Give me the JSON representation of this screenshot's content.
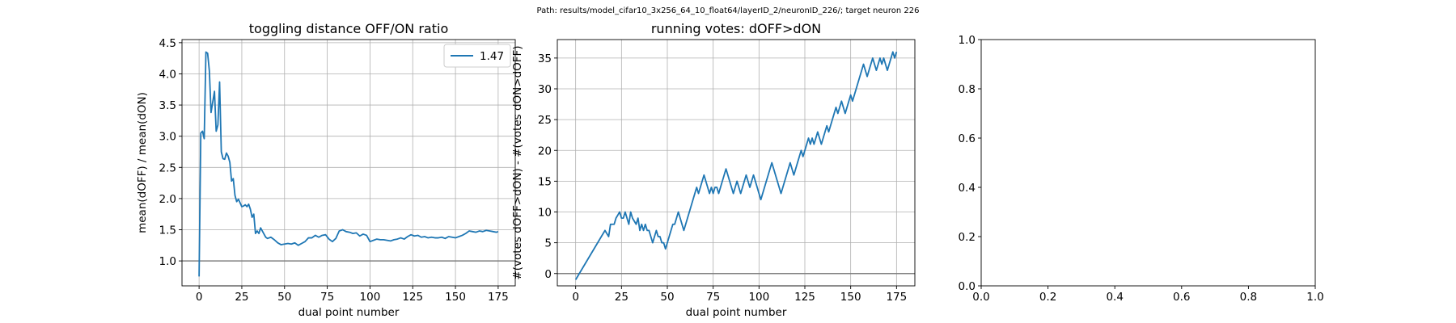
{
  "figure": {
    "suptitle": "Path: results/model_cifar10_3x256_64_10_float64/layerID_2/neuronID_226/; target neuron 226"
  },
  "chart_data": [
    {
      "type": "line",
      "title": "toggling distance OFF/ON ratio",
      "xlabel": "dual point number",
      "ylabel": "mean(dOFF) / mean(dON)",
      "xlim": [
        -10,
        185
      ],
      "ylim": [
        0.6,
        4.55
      ],
      "xticks": [
        0,
        25,
        50,
        75,
        100,
        125,
        150,
        175
      ],
      "yticks": [
        1.0,
        1.5,
        2.0,
        2.5,
        3.0,
        3.5,
        4.0,
        4.5
      ],
      "ytick_labels": [
        "1.0",
        "1.5",
        "2.0",
        "2.5",
        "3.0",
        "3.5",
        "4.0",
        "4.5"
      ],
      "grid": true,
      "legend": "top-right",
      "hline": 1.0,
      "colors": {
        "line": "#1f77b4",
        "hline": "#808080",
        "grid": "#b0b0b0"
      },
      "series": [
        {
          "name": "1.47",
          "x": [
            0,
            1,
            2,
            3,
            4,
            5,
            6,
            7,
            8,
            9,
            10,
            11,
            12,
            13,
            14,
            15,
            16,
            17,
            18,
            19,
            20,
            21,
            22,
            23,
            24,
            25,
            26,
            27,
            28,
            29,
            30,
            31,
            32,
            33,
            34,
            35,
            36,
            37,
            38,
            39,
            40,
            42,
            44,
            46,
            48,
            50,
            52,
            54,
            56,
            58,
            60,
            62,
            64,
            66,
            68,
            70,
            72,
            74,
            76,
            78,
            80,
            82,
            84,
            86,
            88,
            90,
            92,
            94,
            96,
            98,
            100,
            102,
            104,
            106,
            108,
            110,
            112,
            114,
            116,
            118,
            120,
            122,
            124,
            126,
            128,
            130,
            132,
            134,
            136,
            138,
            140,
            142,
            144,
            146,
            148,
            150,
            152,
            154,
            156,
            158,
            160,
            162,
            164,
            166,
            168,
            170,
            172,
            174,
            175
          ],
          "y": [
            0.75,
            3.05,
            3.08,
            2.96,
            4.35,
            4.33,
            4.05,
            3.38,
            3.55,
            3.72,
            3.08,
            3.18,
            3.87,
            2.75,
            2.64,
            2.63,
            2.73,
            2.68,
            2.58,
            2.28,
            2.32,
            2.05,
            1.95,
            1.99,
            1.93,
            1.87,
            1.88,
            1.9,
            1.87,
            1.91,
            1.83,
            1.7,
            1.75,
            1.44,
            1.48,
            1.44,
            1.53,
            1.48,
            1.43,
            1.38,
            1.36,
            1.38,
            1.34,
            1.29,
            1.26,
            1.27,
            1.28,
            1.27,
            1.29,
            1.25,
            1.28,
            1.31,
            1.37,
            1.37,
            1.41,
            1.38,
            1.41,
            1.42,
            1.35,
            1.31,
            1.36,
            1.48,
            1.5,
            1.47,
            1.46,
            1.44,
            1.45,
            1.4,
            1.43,
            1.41,
            1.31,
            1.33,
            1.35,
            1.34,
            1.34,
            1.33,
            1.32,
            1.34,
            1.35,
            1.37,
            1.35,
            1.39,
            1.42,
            1.4,
            1.41,
            1.38,
            1.39,
            1.37,
            1.38,
            1.37,
            1.37,
            1.38,
            1.36,
            1.39,
            1.38,
            1.37,
            1.39,
            1.41,
            1.44,
            1.48,
            1.47,
            1.46,
            1.48,
            1.47,
            1.49,
            1.48,
            1.47,
            1.46,
            1.47
          ]
        }
      ]
    },
    {
      "type": "line",
      "title": "running votes: dOFF>dON",
      "xlabel": "dual point number",
      "ylabel": "#(votes dOFF>dON) - #(votes dON>dOFF)",
      "xlim": [
        -10,
        185
      ],
      "ylim": [
        -2,
        38
      ],
      "xticks": [
        0,
        25,
        50,
        75,
        100,
        125,
        150,
        175
      ],
      "yticks": [
        0,
        5,
        10,
        15,
        20,
        25,
        30,
        35
      ],
      "ytick_labels": [
        "0",
        "5",
        "10",
        "15",
        "20",
        "25",
        "30",
        "35"
      ],
      "grid": true,
      "hline": 0,
      "colors": {
        "line": "#1f77b4",
        "hline": "#808080",
        "grid": "#b0b0b0"
      },
      "series": [
        {
          "x": [
            0,
            16,
            18,
            19,
            21,
            22,
            24,
            25,
            26,
            27,
            29,
            30,
            31,
            33,
            34,
            35,
            36,
            37,
            38,
            39,
            40,
            41,
            42,
            43,
            44,
            45,
            46,
            47,
            48,
            49,
            50,
            51,
            52,
            53,
            54,
            55,
            56,
            57,
            58,
            59,
            60,
            61,
            62,
            63,
            64,
            65,
            66,
            67,
            68,
            69,
            70,
            71,
            72,
            73,
            74,
            75,
            76,
            77,
            78,
            79,
            80,
            81,
            82,
            83,
            84,
            85,
            86,
            87,
            88,
            89,
            90,
            91,
            92,
            93,
            94,
            95,
            96,
            97,
            98,
            99,
            100,
            101,
            102,
            103,
            104,
            105,
            106,
            107,
            108,
            109,
            110,
            111,
            112,
            113,
            114,
            115,
            116,
            117,
            118,
            119,
            120,
            121,
            122,
            123,
            124,
            125,
            126,
            127,
            128,
            129,
            130,
            131,
            132,
            133,
            134,
            135,
            136,
            137,
            138,
            139,
            140,
            141,
            142,
            143,
            144,
            145,
            146,
            147,
            148,
            149,
            150,
            151,
            152,
            153,
            154,
            155,
            156,
            157,
            158,
            159,
            160,
            161,
            162,
            163,
            164,
            165,
            166,
            167,
            168,
            169,
            170,
            171,
            172,
            173,
            174,
            175
          ],
          "y": [
            -1,
            7,
            6,
            8,
            8,
            9,
            10,
            9,
            9,
            10,
            8,
            10,
            9,
            8,
            9,
            7,
            8,
            7,
            8,
            7,
            7,
            6,
            5,
            6,
            7,
            6,
            6,
            5,
            5,
            4,
            5,
            6,
            7,
            8,
            8,
            9,
            10,
            9,
            8,
            7,
            8,
            9,
            10,
            11,
            12,
            13,
            14,
            13,
            14,
            15,
            16,
            15,
            14,
            13,
            14,
            13,
            14,
            14,
            13,
            14,
            15,
            16,
            17,
            16,
            15,
            14,
            13,
            14,
            15,
            14,
            13,
            14,
            15,
            16,
            15,
            14,
            15,
            16,
            15,
            14,
            13,
            12,
            13,
            14,
            15,
            16,
            17,
            18,
            17,
            16,
            15,
            14,
            13,
            14,
            15,
            16,
            17,
            18,
            17,
            16,
            17,
            18,
            19,
            20,
            19,
            20,
            21,
            22,
            21,
            22,
            21,
            22,
            23,
            22,
            21,
            22,
            23,
            24,
            23,
            24,
            25,
            26,
            27,
            26,
            27,
            28,
            27,
            26,
            27,
            28,
            29,
            28,
            29,
            30,
            31,
            32,
            33,
            34,
            33,
            32,
            33,
            34,
            35,
            34,
            33,
            34,
            35,
            34,
            35,
            34,
            33,
            34,
            35,
            36,
            35,
            36
          ]
        }
      ]
    },
    {
      "type": "line",
      "title": "",
      "xlim": [
        0,
        1
      ],
      "ylim": [
        0,
        1
      ],
      "xticks": [
        0.0,
        0.2,
        0.4,
        0.6,
        0.8,
        1.0
      ],
      "yticks": [
        0.0,
        0.2,
        0.4,
        0.6,
        0.8,
        1.0
      ],
      "xtick_labels": [
        "0.0",
        "0.2",
        "0.4",
        "0.6",
        "0.8",
        "1.0"
      ],
      "ytick_labels": [
        "0.0",
        "0.2",
        "0.4",
        "0.6",
        "0.8",
        "1.0"
      ],
      "grid": false,
      "series": []
    }
  ]
}
